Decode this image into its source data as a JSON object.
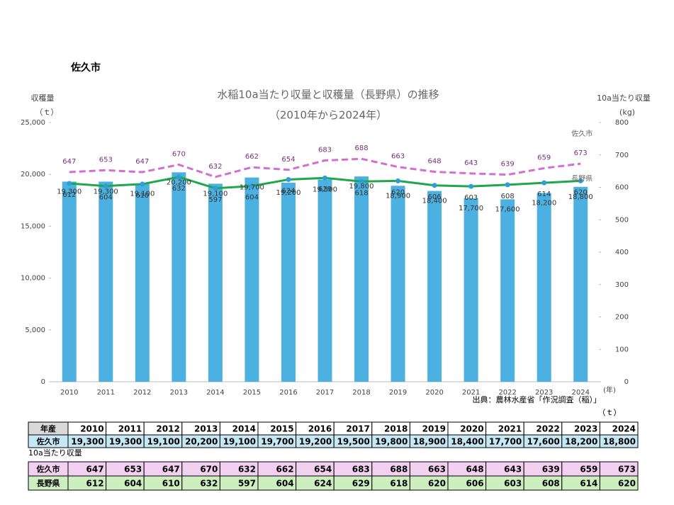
{
  "heading": "佐久市",
  "chart_data": {
    "type": "bar_line",
    "title": "水稲10a当たり収量と収穫量（長野県）の推移",
    "subtitle": "（2010年から2024年）",
    "y_label": "収穫量",
    "y_unit": "（ｔ）",
    "y2_label": "10a当たり収量",
    "y2_unit": "(kg)",
    "x_unit": "(年)",
    "source": "出典：農林水産省「作況調査（稲）」",
    "categories": [
      "2010",
      "2011",
      "2012",
      "2013",
      "2014",
      "2015",
      "2016",
      "2017",
      "2018",
      "2019",
      "2020",
      "2021",
      "2022",
      "2023",
      "2024"
    ],
    "ylim": [
      0,
      25000
    ],
    "yticks": [
      0,
      {
        "value": 5000,
        "label": "5,000"
      },
      {
        "value": 10000,
        "label": "10,000"
      },
      {
        "value": 15000,
        "label": "15,000"
      },
      {
        "value": 20000,
        "label": "20,000"
      },
      {
        "value": 25000,
        "label": "25,000"
      }
    ],
    "y2lim": [
      0,
      800
    ],
    "y2ticks": [
      0,
      100,
      200,
      300,
      400,
      500,
      600,
      700,
      800
    ],
    "series": [
      {
        "type": "bar",
        "color": "#4cb1e1",
        "values": [
          19300,
          19300,
          19100,
          20200,
          19100,
          19700,
          19200,
          19500,
          19800,
          18900,
          18400,
          17700,
          17600,
          18200,
          18800
        ],
        "value_labels": [
          "19,300",
          "19,300",
          "19,100",
          "20,200",
          "19,100",
          "19,700",
          "19,200",
          "19,500",
          "19,800",
          "18,900",
          "18,400",
          "17,700",
          "17,600",
          "18,200",
          "18,800"
        ]
      },
      {
        "type": "line",
        "name": "佐久市",
        "axis": "y2",
        "color": "#d36fd0",
        "dashed": true,
        "values": [
          647,
          653,
          647,
          670,
          632,
          662,
          654,
          683,
          688,
          663,
          648,
          643,
          639,
          659,
          673
        ]
      },
      {
        "type": "line",
        "name": "長野県",
        "axis": "y2",
        "color": "#1fa84b",
        "marker_color": "#2e9fd6",
        "values": [
          612,
          604,
          610,
          632,
          597,
          604,
          624,
          629,
          618,
          620,
          606,
          603,
          608,
          614,
          620
        ]
      }
    ]
  },
  "table": {
    "unit": "（ｔ）",
    "header": "年産",
    "harvest_row": "佐久市",
    "yield_caption": "10a当たり収量"
  }
}
